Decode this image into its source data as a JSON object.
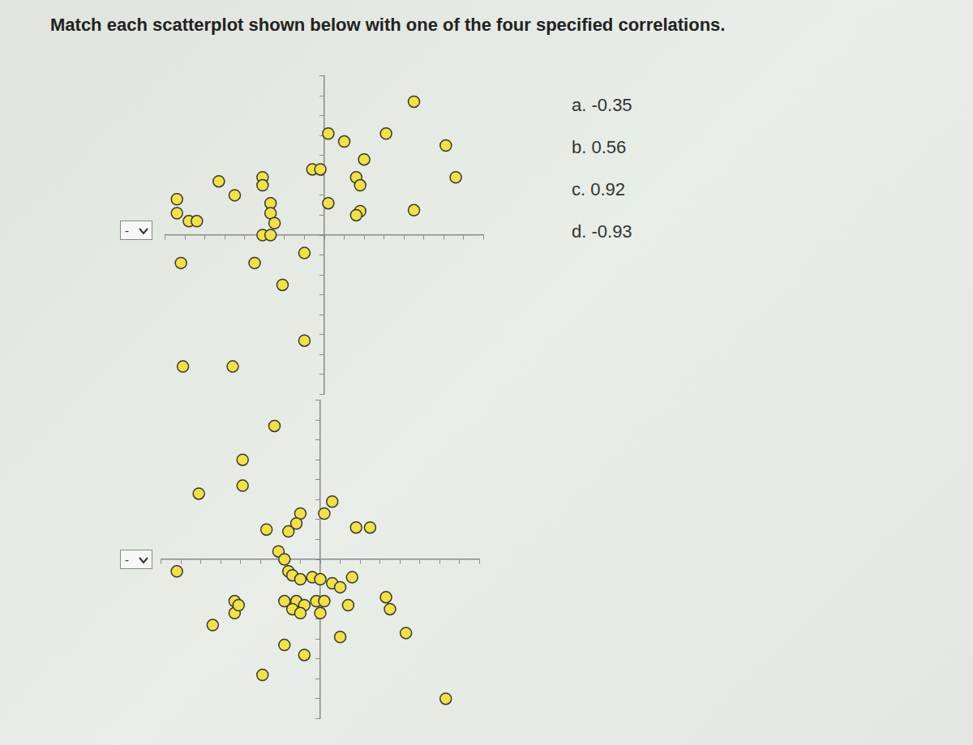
{
  "question": "Match each scatterplot shown below with one of the four specified correlations.",
  "options": [
    "a. -0.35",
    "b. 0.56",
    "c. 0.92",
    "d. -0.93"
  ],
  "dropdown_text": "-",
  "chart_data": [
    {
      "type": "scatter",
      "marker": "circle",
      "color": "#f2e04b",
      "grid": false,
      "tick_labels": false,
      "xlim": [
        -8,
        8
      ],
      "ylim": [
        -8,
        8
      ],
      "xticks": [
        -8,
        -7,
        -6,
        -5,
        -4,
        -3,
        -2,
        -1,
        0,
        1,
        2,
        3,
        4,
        5,
        6,
        7,
        8
      ],
      "yticks": [
        -8,
        -7,
        -6,
        -5,
        -4,
        -3,
        -2,
        -1,
        0,
        1,
        2,
        3,
        4,
        5,
        6,
        7,
        8
      ],
      "x": [
        4.5,
        0.2,
        1.0,
        3.1,
        6.1,
        2.0,
        -0.6,
        -0.2,
        -3.1,
        -3.1,
        1.6,
        1.8,
        6.6,
        -5.3,
        -4.5,
        0.2,
        1.8,
        1.6,
        4.5,
        -7.4,
        -7.4,
        -6.8,
        -6.4,
        -2.7,
        -2.7,
        -3.1,
        -2.7,
        -3.5,
        -1.0,
        -2.1,
        -1.0,
        -7.2,
        -7.1,
        -4.6,
        -2.5
      ],
      "values": [
        6.7,
        5.1,
        4.7,
        5.1,
        4.5,
        3.8,
        3.3,
        3.3,
        2.9,
        2.5,
        2.9,
        2.5,
        2.9,
        2.7,
        2.0,
        1.6,
        1.2,
        1.0,
        1.25,
        1.8,
        1.1,
        0.7,
        0.7,
        1.6,
        1.1,
        0,
        0,
        -1.4,
        -0.9,
        -2.5,
        -5.3,
        -1.4,
        -6.6,
        -6.6,
        0.6
      ]
    },
    {
      "type": "scatter",
      "marker": "circle",
      "color": "#f2e04b",
      "grid": false,
      "tick_labels": false,
      "xlim": [
        -8,
        8
      ],
      "ylim": [
        -8,
        8
      ],
      "xticks": [
        -8,
        -7,
        -6,
        -5,
        -4,
        -3,
        -2,
        -1,
        0,
        1,
        2,
        3,
        4,
        5,
        6,
        7,
        8
      ],
      "yticks": [
        -8,
        -7,
        -6,
        -5,
        -4,
        -3,
        -2,
        -1,
        0,
        1,
        2,
        3,
        4,
        5,
        6,
        7,
        8
      ],
      "x": [
        -2.3,
        -3.9,
        -3.9,
        -6.1,
        -7.2,
        0.6,
        0.2,
        -1.0,
        -1.2,
        -2.7,
        -1.6,
        1.8,
        2.5,
        -2.1,
        -1.8,
        -1.6,
        -1.4,
        -1.0,
        -0.4,
        0,
        0.6,
        1.6,
        1.0,
        3.3,
        3.5,
        4.3,
        1.0,
        6.3,
        -1.8,
        -1.2,
        -0.8,
        -0.2,
        -1.4,
        0.2,
        -1.0,
        0,
        1.4,
        -1.8,
        -0.8,
        -4.3,
        -4.3,
        -4.1,
        -5.4,
        -2.9
      ],
      "values": [
        6.7,
        5.0,
        3.7,
        3.3,
        -0.6,
        2.9,
        2.3,
        2.3,
        1.8,
        1.5,
        1.4,
        1.6,
        1.6,
        0.4,
        0,
        -0.6,
        -0.8,
        -1.0,
        -0.9,
        -1.0,
        -1.2,
        -0.9,
        -1.4,
        -1.9,
        -2.5,
        -3.7,
        -3.9,
        -7.0,
        -2.1,
        -2.1,
        -2.3,
        -2.1,
        -2.5,
        -2.1,
        -2.7,
        -2.7,
        -2.3,
        -4.3,
        -4.8,
        -2.1,
        -2.7,
        -2.3,
        -3.3,
        -5.8
      ]
    }
  ]
}
